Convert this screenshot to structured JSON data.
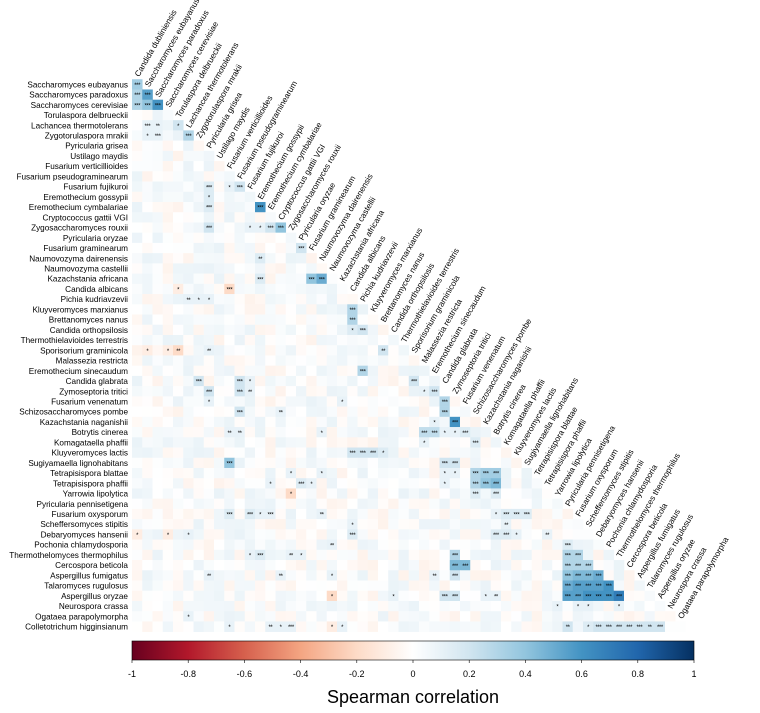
{
  "chart_data": {
    "type": "heatmap",
    "layout": "lower-triangular correlation matrix",
    "species": [
      "Candida dubliniensis",
      "Saccharomyces eubayanus",
      "Saccharomyces paradoxus",
      "Saccharomyces cerevisiae",
      "Torulaspora delbrueckii",
      "Lachancea thermotolerans",
      "Zygotorulaspora mrakii",
      "Pyricularia grisea",
      "Ustilago maydis",
      "Fusarium verticillioides",
      "Fusarium pseudograminearum",
      "Fusarium fujikuroi",
      "Eremothecium gossypii",
      "Eremothecium cymbalariae",
      "Cryptococcus gattii VGI",
      "Zygosaccharomyces rouxii",
      "Pyricularia oryzae",
      "Fusarium graminearum",
      "Naumovozyma dairenensis",
      "Naumovozyma castellii",
      "Kazachstania africana",
      "Candida albicans",
      "Pichia kudriavzevii",
      "Kluyveromyces marxianus",
      "Brettanomyces nanus",
      "Candida orthopsilosis",
      "Thermothielavioides terrestris",
      "Sporisorium graminicola",
      "Malassezia restricta",
      "Eremothecium sinecaudum",
      "Candida glabrata",
      "Zymoseptoria tritici",
      "Fusarium venenatum",
      "Schizosaccharomyces pombe",
      "Kazachstania naganishii",
      "Botrytis cinerea",
      "Komagataella phaffii",
      "Kluyveromyces lactis",
      "Sugiyamaella lignohabitans",
      "Tetrapisispora blattae",
      "Tetrapisispora phaffii",
      "Yarrowia lipolytica",
      "Pyricularia pennisetigena",
      "Fusarium oxysporum",
      "Scheffersomyces stipitis",
      "Debaryomyces hansenii",
      "Pochonia chlamydosporia",
      "Thermothelomyces thermophilus",
      "Cercospora beticola",
      "Aspergillus fumigatus",
      "Talaromyces rugulosus",
      "Aspergillus oryzae",
      "Neurospora crassa",
      "Ogataea parapolymorpha",
      "Colletotrichum higginsianum"
    ],
    "highlighted_cells": [
      {
        "row": 1,
        "col": 0,
        "value": 0.35,
        "stars": "***"
      },
      {
        "row": 2,
        "col": 0,
        "value": 0.3,
        "stars": "***"
      },
      {
        "row": 2,
        "col": 1,
        "value": 0.55,
        "stars": "***"
      },
      {
        "row": 3,
        "col": 0,
        "value": 0.3,
        "stars": "***"
      },
      {
        "row": 3,
        "col": 1,
        "value": 0.4,
        "stars": "***"
      },
      {
        "row": 3,
        "col": 2,
        "value": 0.6,
        "stars": "***"
      },
      {
        "row": 5,
        "col": 1,
        "value": 0.1,
        "stars": "***"
      },
      {
        "row": 5,
        "col": 2,
        "value": 0.1,
        "stars": "**"
      },
      {
        "row": 5,
        "col": 4,
        "value": 0.2,
        "stars": "*"
      },
      {
        "row": 6,
        "col": 1,
        "value": 0.1,
        "stars": "*"
      },
      {
        "row": 6,
        "col": 2,
        "value": 0.1,
        "stars": "***"
      },
      {
        "row": 6,
        "col": 5,
        "value": 0.3,
        "stars": "***"
      },
      {
        "row": 11,
        "col": 7,
        "value": 0.15,
        "stars": "***"
      },
      {
        "row": 11,
        "col": 9,
        "value": 0.1,
        "stars": "*"
      },
      {
        "row": 11,
        "col": 10,
        "value": 0.2,
        "stars": "***"
      },
      {
        "row": 12,
        "col": 7,
        "value": 0.15,
        "stars": "*"
      },
      {
        "row": 13,
        "col": 7,
        "value": 0.15,
        "stars": "***"
      },
      {
        "row": 13,
        "col": 12,
        "value": 0.6,
        "stars": "***"
      },
      {
        "row": 15,
        "col": 7,
        "value": 0.2,
        "stars": "***"
      },
      {
        "row": 15,
        "col": 11,
        "value": 0.1,
        "stars": "*"
      },
      {
        "row": 15,
        "col": 12,
        "value": 0.1,
        "stars": "*"
      },
      {
        "row": 15,
        "col": 13,
        "value": 0.2,
        "stars": "***"
      },
      {
        "row": 15,
        "col": 14,
        "value": 0.4,
        "stars": "***"
      },
      {
        "row": 17,
        "col": 16,
        "value": 0.2,
        "stars": "***"
      },
      {
        "row": 18,
        "col": 12,
        "value": 0.15,
        "stars": "**"
      },
      {
        "row": 20,
        "col": 12,
        "value": 0.15,
        "stars": "***"
      },
      {
        "row": 20,
        "col": 17,
        "value": 0.4,
        "stars": "***"
      },
      {
        "row": 20,
        "col": 18,
        "value": 0.5,
        "stars": "***"
      },
      {
        "row": 21,
        "col": 4,
        "value": -0.1,
        "stars": "*"
      },
      {
        "row": 21,
        "col": 9,
        "value": -0.2,
        "stars": "***"
      },
      {
        "row": 22,
        "col": 5,
        "value": 0.1,
        "stars": "**"
      },
      {
        "row": 22,
        "col": 6,
        "value": 0.1,
        "stars": "*"
      },
      {
        "row": 22,
        "col": 7,
        "value": 0.1,
        "stars": "*"
      },
      {
        "row": 23,
        "col": 21,
        "value": 0.3,
        "stars": "***"
      },
      {
        "row": 24,
        "col": 21,
        "value": 0.3,
        "stars": "***"
      },
      {
        "row": 25,
        "col": 21,
        "value": 0.15,
        "stars": "*"
      },
      {
        "row": 25,
        "col": 22,
        "value": 0.2,
        "stars": "***"
      },
      {
        "row": 27,
        "col": 1,
        "value": -0.1,
        "stars": "*"
      },
      {
        "row": 27,
        "col": 3,
        "value": -0.1,
        "stars": "*"
      },
      {
        "row": 27,
        "col": 4,
        "value": -0.2,
        "stars": "**"
      },
      {
        "row": 27,
        "col": 7,
        "value": 0.1,
        "stars": "**"
      },
      {
        "row": 27,
        "col": 24,
        "value": 0.2,
        "stars": "**"
      },
      {
        "row": 29,
        "col": 22,
        "value": 0.3,
        "stars": "***"
      },
      {
        "row": 30,
        "col": 6,
        "value": 0.2,
        "stars": "***"
      },
      {
        "row": 30,
        "col": 10,
        "value": 0.2,
        "stars": "***"
      },
      {
        "row": 30,
        "col": 11,
        "value": 0.1,
        "stars": "*"
      },
      {
        "row": 30,
        "col": 27,
        "value": 0.2,
        "stars": "***"
      },
      {
        "row": 31,
        "col": 7,
        "value": 0.2,
        "stars": "***"
      },
      {
        "row": 31,
        "col": 10,
        "value": 0.2,
        "stars": "***"
      },
      {
        "row": 31,
        "col": 11,
        "value": 0.1,
        "stars": "**"
      },
      {
        "row": 31,
        "col": 28,
        "value": 0.1,
        "stars": "*"
      },
      {
        "row": 31,
        "col": 29,
        "value": 0.2,
        "stars": "***"
      },
      {
        "row": 32,
        "col": 7,
        "value": 0.1,
        "stars": "*"
      },
      {
        "row": 32,
        "col": 20,
        "value": 0.1,
        "stars": "*"
      },
      {
        "row": 32,
        "col": 30,
        "value": 0.3,
        "stars": "***"
      },
      {
        "row": 33,
        "col": 10,
        "value": 0.2,
        "stars": "***"
      },
      {
        "row": 33,
        "col": 14,
        "value": 0.1,
        "stars": "**"
      },
      {
        "row": 33,
        "col": 30,
        "value": 0.3,
        "stars": "***"
      },
      {
        "row": 34,
        "col": 29,
        "value": 0.1,
        "stars": "*"
      },
      {
        "row": 34,
        "col": 31,
        "value": 0.6,
        "stars": "***"
      },
      {
        "row": 35,
        "col": 9,
        "value": 0.1,
        "stars": "**"
      },
      {
        "row": 35,
        "col": 10,
        "value": 0.1,
        "stars": "**"
      },
      {
        "row": 35,
        "col": 18,
        "value": 0.1,
        "stars": "*"
      },
      {
        "row": 35,
        "col": 28,
        "value": 0.25,
        "stars": "***"
      },
      {
        "row": 35,
        "col": 29,
        "value": 0.25,
        "stars": "***"
      },
      {
        "row": 35,
        "col": 30,
        "value": 0.1,
        "stars": "*"
      },
      {
        "row": 35,
        "col": 31,
        "value": 0.1,
        "stars": "*"
      },
      {
        "row": 35,
        "col": 32,
        "value": 0.15,
        "stars": "***"
      },
      {
        "row": 36,
        "col": 28,
        "value": 0.1,
        "stars": "*"
      },
      {
        "row": 36,
        "col": 33,
        "value": 0.15,
        "stars": "***"
      },
      {
        "row": 37,
        "col": 21,
        "value": 0.2,
        "stars": "***"
      },
      {
        "row": 37,
        "col": 22,
        "value": 0.2,
        "stars": "***"
      },
      {
        "row": 37,
        "col": 23,
        "value": 0.2,
        "stars": "***"
      },
      {
        "row": 37,
        "col": 24,
        "value": 0.15,
        "stars": "*"
      },
      {
        "row": 38,
        "col": 9,
        "value": 0.4,
        "stars": "***"
      },
      {
        "row": 38,
        "col": 30,
        "value": 0.2,
        "stars": "***"
      },
      {
        "row": 38,
        "col": 31,
        "value": 0.2,
        "stars": "***"
      },
      {
        "row": 39,
        "col": 15,
        "value": 0.1,
        "stars": "*"
      },
      {
        "row": 39,
        "col": 18,
        "value": 0.1,
        "stars": "*"
      },
      {
        "row": 39,
        "col": 30,
        "value": 0.1,
        "stars": "*"
      },
      {
        "row": 39,
        "col": 31,
        "value": 0.1,
        "stars": "*"
      },
      {
        "row": 39,
        "col": 33,
        "value": 0.3,
        "stars": "***"
      },
      {
        "row": 39,
        "col": 34,
        "value": 0.35,
        "stars": "***"
      },
      {
        "row": 39,
        "col": 35,
        "value": 0.35,
        "stars": "***"
      },
      {
        "row": 40,
        "col": 13,
        "value": 0.1,
        "stars": "*"
      },
      {
        "row": 40,
        "col": 16,
        "value": 0.15,
        "stars": "***"
      },
      {
        "row": 40,
        "col": 17,
        "value": 0.1,
        "stars": "*"
      },
      {
        "row": 40,
        "col": 30,
        "value": 0.1,
        "stars": "*"
      },
      {
        "row": 40,
        "col": 33,
        "value": 0.3,
        "stars": "***"
      },
      {
        "row": 40,
        "col": 34,
        "value": 0.4,
        "stars": "***"
      },
      {
        "row": 40,
        "col": 35,
        "value": 0.45,
        "stars": "***"
      },
      {
        "row": 41,
        "col": 15,
        "value": -0.2,
        "stars": "*"
      },
      {
        "row": 41,
        "col": 33,
        "value": 0.15,
        "stars": "***"
      },
      {
        "row": 41,
        "col": 35,
        "value": 0.15,
        "stars": "***"
      },
      {
        "row": 43,
        "col": 9,
        "value": 0.15,
        "stars": "***"
      },
      {
        "row": 43,
        "col": 11,
        "value": 0.15,
        "stars": "***"
      },
      {
        "row": 43,
        "col": 12,
        "value": 0.1,
        "stars": "*"
      },
      {
        "row": 43,
        "col": 13,
        "value": 0.1,
        "stars": "***"
      },
      {
        "row": 43,
        "col": 18,
        "value": 0.1,
        "stars": "**"
      },
      {
        "row": 43,
        "col": 35,
        "value": 0.1,
        "stars": "*"
      },
      {
        "row": 43,
        "col": 36,
        "value": 0.15,
        "stars": "***"
      },
      {
        "row": 43,
        "col": 37,
        "value": 0.15,
        "stars": "***"
      },
      {
        "row": 43,
        "col": 38,
        "value": 0.15,
        "stars": "***"
      },
      {
        "row": 44,
        "col": 21,
        "value": 0.1,
        "stars": "*"
      },
      {
        "row": 44,
        "col": 36,
        "value": 0.1,
        "stars": "**"
      },
      {
        "row": 45,
        "col": 0,
        "value": -0.1,
        "stars": "*"
      },
      {
        "row": 45,
        "col": 3,
        "value": -0.1,
        "stars": "*"
      },
      {
        "row": 45,
        "col": 5,
        "value": 0.1,
        "stars": "*"
      },
      {
        "row": 45,
        "col": 21,
        "value": 0.15,
        "stars": "***"
      },
      {
        "row": 45,
        "col": 35,
        "value": 0.15,
        "stars": "***"
      },
      {
        "row": 45,
        "col": 36,
        "value": 0.15,
        "stars": "***"
      },
      {
        "row": 45,
        "col": 37,
        "value": 0.1,
        "stars": "*"
      },
      {
        "row": 45,
        "col": 40,
        "value": 0.1,
        "stars": "**"
      },
      {
        "row": 46,
        "col": 19,
        "value": 0.1,
        "stars": "**"
      },
      {
        "row": 46,
        "col": 42,
        "value": 0.15,
        "stars": "***"
      },
      {
        "row": 47,
        "col": 11,
        "value": 0.1,
        "stars": "*"
      },
      {
        "row": 47,
        "col": 12,
        "value": 0.15,
        "stars": "***"
      },
      {
        "row": 47,
        "col": 15,
        "value": 0.1,
        "stars": "**"
      },
      {
        "row": 47,
        "col": 16,
        "value": 0.1,
        "stars": "*"
      },
      {
        "row": 47,
        "col": 31,
        "value": 0.3,
        "stars": "***"
      },
      {
        "row": 47,
        "col": 42,
        "value": 0.3,
        "stars": "***"
      },
      {
        "row": 47,
        "col": 43,
        "value": 0.3,
        "stars": "***"
      },
      {
        "row": 48,
        "col": 31,
        "value": 0.45,
        "stars": "***"
      },
      {
        "row": 48,
        "col": 32,
        "value": 0.45,
        "stars": "***"
      },
      {
        "row": 48,
        "col": 42,
        "value": 0.3,
        "stars": "***"
      },
      {
        "row": 48,
        "col": 43,
        "value": 0.3,
        "stars": "***"
      },
      {
        "row": 48,
        "col": 44,
        "value": 0.3,
        "stars": "***"
      },
      {
        "row": 49,
        "col": 7,
        "value": 0.1,
        "stars": "**"
      },
      {
        "row": 49,
        "col": 14,
        "value": 0.1,
        "stars": "**"
      },
      {
        "row": 49,
        "col": 19,
        "value": 0.1,
        "stars": "*"
      },
      {
        "row": 49,
        "col": 29,
        "value": 0.1,
        "stars": "**"
      },
      {
        "row": 49,
        "col": 31,
        "value": 0.2,
        "stars": "***"
      },
      {
        "row": 49,
        "col": 42,
        "value": 0.4,
        "stars": "***"
      },
      {
        "row": 49,
        "col": 43,
        "value": 0.45,
        "stars": "***"
      },
      {
        "row": 49,
        "col": 44,
        "value": 0.45,
        "stars": "***"
      },
      {
        "row": 49,
        "col": 45,
        "value": 0.5,
        "stars": "***"
      },
      {
        "row": 50,
        "col": 42,
        "value": 0.5,
        "stars": "***"
      },
      {
        "row": 50,
        "col": 43,
        "value": 0.55,
        "stars": "***"
      },
      {
        "row": 50,
        "col": 44,
        "value": 0.55,
        "stars": "***"
      },
      {
        "row": 50,
        "col": 45,
        "value": 0.55,
        "stars": "***"
      },
      {
        "row": 50,
        "col": 46,
        "value": 0.6,
        "stars": "***"
      },
      {
        "row": 51,
        "col": 19,
        "value": -0.2,
        "stars": "*"
      },
      {
        "row": 51,
        "col": 25,
        "value": 0.1,
        "stars": "*"
      },
      {
        "row": 51,
        "col": 30,
        "value": 0.2,
        "stars": "***"
      },
      {
        "row": 51,
        "col": 31,
        "value": 0.2,
        "stars": "***"
      },
      {
        "row": 51,
        "col": 34,
        "value": 0.1,
        "stars": "*"
      },
      {
        "row": 51,
        "col": 35,
        "value": 0.1,
        "stars": "**"
      },
      {
        "row": 51,
        "col": 42,
        "value": 0.55,
        "stars": "***"
      },
      {
        "row": 51,
        "col": 43,
        "value": 0.55,
        "stars": "***"
      },
      {
        "row": 51,
        "col": 44,
        "value": 0.6,
        "stars": "***"
      },
      {
        "row": 51,
        "col": 45,
        "value": 0.6,
        "stars": "***"
      },
      {
        "row": 51,
        "col": 46,
        "value": 0.6,
        "stars": "***"
      },
      {
        "row": 51,
        "col": 47,
        "value": 0.7,
        "stars": "***"
      },
      {
        "row": 52,
        "col": 41,
        "value": 0.1,
        "stars": "*"
      },
      {
        "row": 52,
        "col": 43,
        "value": 0.1,
        "stars": "*"
      },
      {
        "row": 52,
        "col": 44,
        "value": 0.1,
        "stars": "*"
      },
      {
        "row": 52,
        "col": 47,
        "value": 0.1,
        "stars": "*"
      },
      {
        "row": 53,
        "col": 5,
        "value": 0.1,
        "stars": "*"
      },
      {
        "row": 54,
        "col": 9,
        "value": 0.1,
        "stars": "*"
      },
      {
        "row": 54,
        "col": 13,
        "value": 0.1,
        "stars": "**"
      },
      {
        "row": 54,
        "col": 14,
        "value": 0.1,
        "stars": "*"
      },
      {
        "row": 54,
        "col": 15,
        "value": 0.1,
        "stars": "***"
      },
      {
        "row": 54,
        "col": 19,
        "value": -0.1,
        "stars": "*"
      },
      {
        "row": 54,
        "col": 20,
        "value": 0.1,
        "stars": "*"
      },
      {
        "row": 54,
        "col": 42,
        "value": 0.2,
        "stars": "**"
      },
      {
        "row": 54,
        "col": 44,
        "value": 0.15,
        "stars": "*"
      },
      {
        "row": 54,
        "col": 45,
        "value": 0.2,
        "stars": "***"
      },
      {
        "row": 54,
        "col": 46,
        "value": 0.2,
        "stars": "***"
      },
      {
        "row": 54,
        "col": 47,
        "value": 0.2,
        "stars": "***"
      },
      {
        "row": 54,
        "col": 48,
        "value": 0.2,
        "stars": "***"
      },
      {
        "row": 54,
        "col": 49,
        "value": 0.2,
        "stars": "***"
      },
      {
        "row": 54,
        "col": 50,
        "value": 0.2,
        "stars": "**"
      },
      {
        "row": 54,
        "col": 51,
        "value": 0.2,
        "stars": "***"
      }
    ],
    "colorbar": {
      "label": "Spearman correlation",
      "range": [
        -1,
        1
      ],
      "ticks": [
        "-1",
        "-0.8",
        "-0.6",
        "-0.4",
        "-0.2",
        "0",
        "0.2",
        "0.4",
        "0.6",
        "0.8",
        "1"
      ],
      "low_color": "#67001f",
      "mid_color": "#ffffff",
      "high_color": "#053061"
    }
  }
}
